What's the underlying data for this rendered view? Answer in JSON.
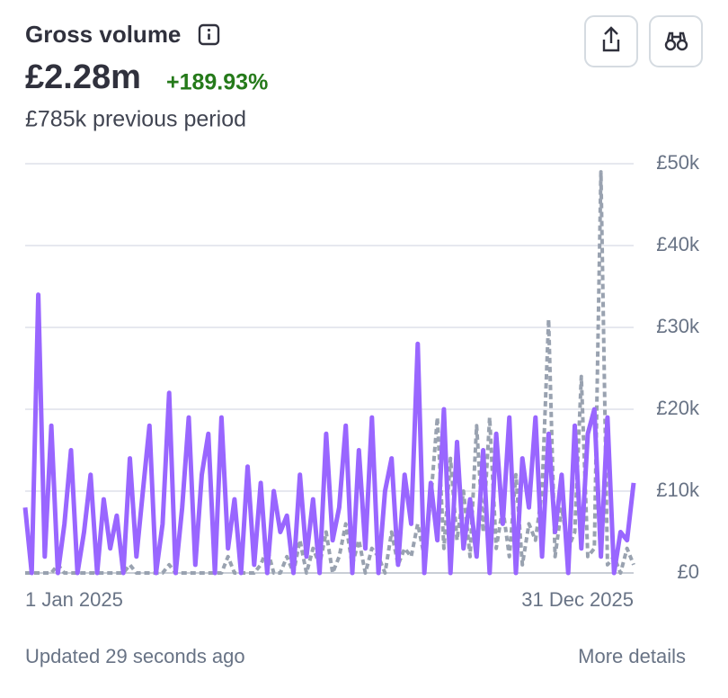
{
  "chart_data": {
    "type": "line",
    "title": "Gross volume",
    "total": "£2.28m",
    "change": "+189.93%",
    "previous": "£785k previous period",
    "footer": "Updated 29 seconds ago",
    "link": "More details",
    "categories": [
      "1 Jan 2025",
      null,
      null,
      null,
      null,
      null,
      null,
      null,
      null,
      null,
      null,
      null,
      null,
      null,
      null,
      null,
      null,
      null,
      null,
      null,
      null,
      null,
      null,
      null,
      null,
      null,
      null,
      null,
      null,
      null,
      null,
      null,
      null,
      null,
      null,
      null,
      null,
      null,
      null,
      null,
      null,
      null,
      null,
      null,
      null,
      null,
      null,
      null,
      null,
      null,
      null,
      null,
      null,
      null,
      null,
      null,
      null,
      null,
      null,
      null,
      null,
      null,
      null,
      null,
      null,
      null,
      null,
      null,
      null,
      null,
      null,
      null,
      null,
      null,
      null,
      null,
      null,
      null,
      null,
      null,
      null,
      null,
      null,
      null,
      null,
      null,
      null,
      null,
      null,
      null,
      null,
      null,
      null,
      "31 Dec 2025"
    ],
    "series": [
      {
        "color": "#9966ff",
        "values": [
          8,
          0,
          34,
          2,
          18,
          0,
          6,
          15,
          0,
          5,
          12,
          0,
          9,
          3,
          7,
          0,
          14,
          2,
          10,
          18,
          0,
          6,
          22,
          0,
          8,
          19,
          1,
          12,
          17,
          0,
          19,
          3,
          9,
          0,
          13,
          1,
          11,
          0,
          10,
          5,
          7,
          0,
          12,
          2,
          9,
          0,
          17,
          4,
          8,
          18,
          0,
          15,
          3,
          19,
          0,
          10,
          14,
          1,
          12,
          6,
          28,
          0,
          11,
          4,
          20,
          0,
          16,
          3,
          9,
          2,
          15,
          0,
          17,
          6,
          19,
          0,
          14,
          8,
          19,
          2,
          17,
          5,
          12,
          0,
          18,
          3,
          17,
          20,
          2,
          19,
          0,
          5,
          4,
          11
        ]
      },
      {
        "color": "#99a2b0",
        "dashed": true,
        "values": [
          0,
          0,
          0,
          0,
          0,
          1,
          0,
          0,
          0,
          0,
          0,
          0,
          0,
          0,
          0,
          0,
          1,
          0,
          0,
          0,
          0,
          0,
          1,
          0,
          0,
          0,
          0,
          0,
          0,
          0,
          0,
          2,
          0,
          0,
          0,
          0,
          1,
          3,
          0,
          0,
          2,
          0,
          4,
          0,
          3,
          1,
          5,
          0,
          2,
          6,
          1,
          4,
          0,
          3,
          2,
          0,
          5,
          1,
          3,
          2,
          6,
          2,
          9,
          19,
          3,
          14,
          4,
          10,
          2,
          18,
          5,
          19,
          3,
          8,
          2,
          12,
          1,
          6,
          4,
          10,
          31,
          2,
          8,
          3,
          5,
          24,
          2,
          3,
          49,
          1,
          2,
          0,
          3,
          1
        ]
      }
    ],
    "ylim": [
      0,
      50
    ],
    "yticks": [
      {
        "value": 0,
        "label": "£0"
      },
      {
        "value": 10,
        "label": "£10k"
      },
      {
        "value": 20,
        "label": "£20k"
      },
      {
        "value": 30,
        "label": "£30k"
      },
      {
        "value": 40,
        "label": "£40k"
      },
      {
        "value": 50,
        "label": "£50k"
      }
    ],
    "grid": true
  }
}
